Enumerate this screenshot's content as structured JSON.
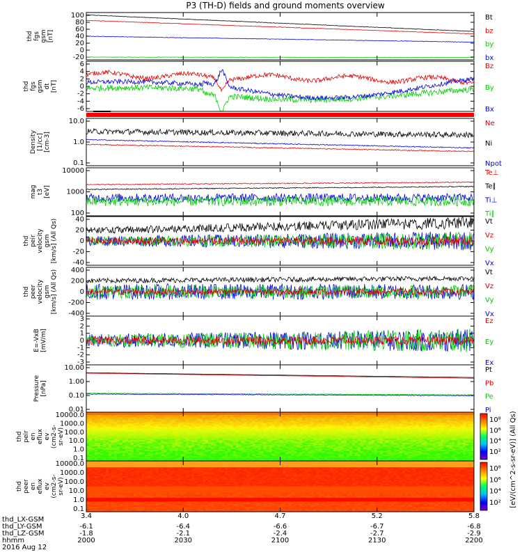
{
  "title": "P3 (TH-D) fields and ground moments overview",
  "colors": {
    "black": "#000000",
    "red": "#e00000",
    "green": "#00cc00",
    "blue": "#0000e0"
  },
  "chart_data": [
    {
      "type": "line",
      "id": "fgs",
      "ylabel": [
        "thd",
        "fgs",
        "gsm",
        "[nT]"
      ],
      "yticks": [
        "100",
        "80",
        "60",
        "40",
        "20",
        "0",
        "-20"
      ],
      "ylim": [
        -20,
        100
      ],
      "legend": [
        {
          "name": "Bt",
          "color": "black"
        },
        {
          "name": "bz",
          "color": "red"
        },
        {
          "name": "by",
          "color": "green"
        },
        {
          "name": "bx",
          "color": "blue"
        }
      ],
      "series": [
        {
          "name": "Bt",
          "color": "black",
          "start": 94,
          "end": 52
        },
        {
          "name": "bz",
          "color": "red",
          "start": 80,
          "end": 46
        },
        {
          "name": "bx",
          "color": "blue",
          "start": 40,
          "end": 25
        },
        {
          "name": "by",
          "color": "green",
          "start": -13,
          "end": -14
        }
      ]
    },
    {
      "type": "line",
      "id": "fgsdt",
      "ylabel": [
        "thd",
        "fgs",
        "gsm",
        "dt",
        "[nT]"
      ],
      "yticks": [
        "6",
        "4",
        "2",
        "0",
        "-2",
        "-4",
        "-6"
      ],
      "ylim": [
        -7,
        6
      ],
      "legend": [
        {
          "name": "Bz",
          "color": "red"
        },
        {
          "name": "By",
          "color": "green"
        },
        {
          "name": "Bx",
          "color": "blue"
        }
      ]
    },
    {
      "type": "line",
      "id": "density",
      "ylabel": [
        "Density",
        "[1/cc]",
        "[cm-3]"
      ],
      "yticks": [
        "10.0",
        "1.0",
        "0.1"
      ],
      "scale": "log",
      "ylim": [
        0.1,
        10
      ],
      "legend": [
        {
          "name": "Ne",
          "color": "red"
        },
        {
          "name": "Ni",
          "color": "black"
        },
        {
          "name": "Npot",
          "color": "blue"
        }
      ]
    },
    {
      "type": "line",
      "id": "temp",
      "ylabel": [
        "mag",
        "t3",
        "[eV]"
      ],
      "yticks": [
        "10000",
        "1000",
        "100"
      ],
      "scale": "log",
      "ylim": [
        100,
        10000
      ],
      "legend": [
        {
          "name": "Te⊥",
          "color": "red"
        },
        {
          "name": "Te∥",
          "color": "black"
        },
        {
          "name": "Ti⊥",
          "color": "blue"
        },
        {
          "name": "Ti∥",
          "color": "green"
        }
      ]
    },
    {
      "type": "line",
      "id": "peir",
      "ylabel": [
        "thd",
        "peir",
        "velocity",
        "gsm",
        "[km/s] (All Qs)"
      ],
      "yticks": [
        "40",
        "20",
        "0",
        "-20",
        "-40"
      ],
      "ylim": [
        -40,
        40
      ],
      "legend": [
        {
          "name": "Vt",
          "color": "black"
        },
        {
          "name": "Vz",
          "color": "red"
        },
        {
          "name": "Vy",
          "color": "green"
        },
        {
          "name": "Vx",
          "color": "blue"
        }
      ]
    },
    {
      "type": "line",
      "id": "peer",
      "ylabel": [
        "thd",
        "peer",
        "velocity",
        "gsm",
        "[km/s] (All Qs)"
      ],
      "yticks": [
        "400",
        "200",
        "0",
        "-200",
        "-400"
      ],
      "ylim": [
        -400,
        400
      ],
      "legend": [
        {
          "name": "Vt",
          "color": "black"
        },
        {
          "name": "Vz",
          "color": "red"
        },
        {
          "name": "Vy",
          "color": "green"
        },
        {
          "name": "Vx",
          "color": "blue"
        }
      ]
    },
    {
      "type": "line",
      "id": "exb",
      "ylabel": [
        "E=-VxB",
        "[mV/m]"
      ],
      "yticks": [
        "3",
        "2",
        "1",
        "0",
        "-1",
        "-2",
        "-3"
      ],
      "ylim": [
        -3,
        3
      ],
      "legend": [
        {
          "name": "Ez",
          "color": "red"
        },
        {
          "name": "Ey",
          "color": "green"
        },
        {
          "name": "Ex",
          "color": "blue"
        }
      ]
    },
    {
      "type": "line",
      "id": "pressure",
      "ylabel": [
        "Pressure",
        "[nPa]"
      ],
      "yticks": [
        "10.00",
        "1.00",
        "0.10",
        "0.01"
      ],
      "scale": "log",
      "ylim": [
        0.01,
        10
      ],
      "legend": [
        {
          "name": "Pt",
          "color": "black"
        },
        {
          "name": "Pb",
          "color": "red"
        },
        {
          "name": "Pe",
          "color": "green"
        },
        {
          "name": "Pi",
          "color": "blue"
        }
      ]
    },
    {
      "type": "heatmap",
      "id": "peir_en",
      "ylabel": [
        "thd",
        "peir",
        "en",
        "eflux",
        "ev",
        "(cm2-s-",
        "sr-eV)"
      ],
      "yticks": [
        "10000.0",
        "1000.0",
        "100.0",
        "10.0",
        "1.0",
        "0.1"
      ],
      "scale": "log",
      "ylim": [
        0.1,
        10000
      ]
    },
    {
      "type": "heatmap",
      "id": "peer_en",
      "ylabel": [
        "thd",
        "peer",
        "en",
        "eflux",
        "ev",
        "(cm2-s-",
        "sr-eV)"
      ],
      "yticks": [
        "10000.0",
        "1000.0",
        "100.0",
        "10.0",
        "1.0",
        "0.1"
      ],
      "scale": "log",
      "ylim": [
        0.1,
        10000
      ]
    }
  ],
  "colorbars": [
    {
      "ticks": [
        "10⁸",
        "10⁶",
        "10⁴",
        "10²"
      ]
    },
    {
      "ticks": [
        "10⁸",
        "10⁶",
        "10⁴",
        "10²"
      ]
    }
  ],
  "colorbar_label": "[eV/(cm^2-s-sr-eV)] (All Qs)",
  "xaxis": {
    "row_labels": [
      "thd_LX-GSM",
      "thd_LY-GSM",
      "thd_LZ-GSM",
      "hhmm"
    ],
    "date": "2016 Aug 12",
    "ticks": [
      {
        "vals": [
          "3.4",
          "-6.1",
          "-1.8",
          "2000"
        ]
      },
      {
        "vals": [
          "4.0",
          "-6.4",
          "-2.1",
          "2030"
        ]
      },
      {
        "vals": [
          "4.7",
          "-6.6",
          "-2.4",
          "2100"
        ]
      },
      {
        "vals": [
          "5.2",
          "-6.7",
          "-2.7",
          "2130"
        ]
      },
      {
        "vals": [
          "5.8",
          "-6.8",
          "-2.9",
          "2200"
        ]
      }
    ]
  }
}
